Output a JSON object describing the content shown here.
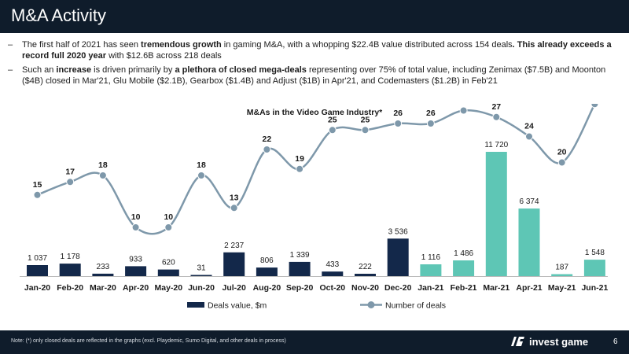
{
  "header": {
    "title": "M&A Activity"
  },
  "bullets": [
    {
      "dash": "–",
      "parts": [
        {
          "text": "The first half of 2021 has seen ",
          "bold": false
        },
        {
          "text": "tremendous growth",
          "bold": true
        },
        {
          "text": " in gaming M&A, with a whopping $22.4B value distributed across 154 deals",
          "bold": false
        },
        {
          "text": ". This already exceeds a record full 2020 year",
          "bold": true
        },
        {
          "text": " with $12.6B across 218 deals",
          "bold": false
        }
      ]
    },
    {
      "dash": "–",
      "parts": [
        {
          "text": "Such an ",
          "bold": false
        },
        {
          "text": "increase",
          "bold": true
        },
        {
          "text": " is driven primarily by ",
          "bold": false
        },
        {
          "text": "a plethora of closed mega-deals",
          "bold": true
        },
        {
          "text": " representing over 75% of total value, including Zenimax ($7.5B) and Moonton ($4B) closed in Mar'21, Glu Mobile ($2.1B), Gearbox ($1.4B) and Adjust ($1B) in Apr'21, and Codemasters ($1.2B) in Feb'21",
          "bold": false
        }
      ]
    }
  ],
  "chart_data": {
    "type": "bar",
    "title": "M&As in the Video Game Industry*",
    "categories": [
      "Jan-20",
      "Feb-20",
      "Mar-20",
      "Apr-20",
      "May-20",
      "Jun-20",
      "Jul-20",
      "Aug-20",
      "Sep-20",
      "Oct-20",
      "Nov-20",
      "Dec-20",
      "Jan-21",
      "Feb-21",
      "Mar-21",
      "Apr-21",
      "May-21",
      "Jun-21"
    ],
    "series": [
      {
        "name": "Deals value, $m",
        "kind": "bar",
        "values": [
          1037,
          1178,
          233,
          933,
          620,
          31,
          2237,
          806,
          1339,
          433,
          222,
          3536,
          1116,
          1486,
          11720,
          6374,
          187,
          1548
        ],
        "labels": [
          "1 037",
          "1 178",
          "233",
          "933",
          "620",
          "31",
          "2 237",
          "806",
          "1 339",
          "433",
          "222",
          "3 536",
          "1 116",
          "1 486",
          "11 720",
          "6 374",
          "187",
          "1 548"
        ]
      },
      {
        "name": "Number of deals",
        "kind": "line",
        "values": [
          15,
          17,
          18,
          10,
          10,
          18,
          13,
          22,
          19,
          25,
          25,
          26,
          26,
          28,
          27,
          24,
          20,
          29
        ]
      }
    ],
    "colors": {
      "bar_2020": "#13284a",
      "bar_2021": "#5ec6b5",
      "line": "#7e98aa",
      "axis": "#bbbbbb",
      "text": "#1a1a1a"
    },
    "legend": "bottom-center",
    "xlabel": "",
    "ylabel": ""
  },
  "footer": {
    "note_label": "Note",
    "note_text": ": (*) only closed deals are reflected in the graphs (excl. Playdemic, Sumo Digital, and other deals in process)",
    "logo_text": "invest game",
    "page_number": "6"
  }
}
